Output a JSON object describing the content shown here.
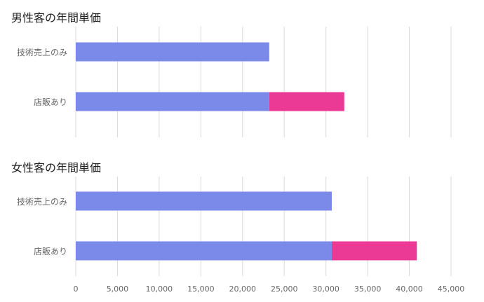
{
  "colors": {
    "base": "#7B8AE8",
    "extra": "#EA3A96",
    "grid": "#DADADA",
    "label": "#666666",
    "title": "#222222"
  },
  "chart_data": [
    {
      "type": "bar",
      "orientation": "horizontal",
      "stacked": true,
      "title": "男性客の年間単価",
      "categories": [
        "技術売上のみ",
        "店販あり"
      ],
      "series": [
        {
          "values": [
            23200,
            23200
          ]
        },
        {
          "values": [
            0,
            9000
          ]
        }
      ],
      "xlim": [
        0,
        45000
      ],
      "grid": true
    },
    {
      "type": "bar",
      "orientation": "horizontal",
      "stacked": true,
      "title": "女性客の年間単価",
      "categories": [
        "技術売上のみ",
        "店販あり"
      ],
      "series": [
        {
          "values": [
            30700,
            30700
          ]
        },
        {
          "values": [
            0,
            10200
          ]
        }
      ],
      "xlim": [
        0,
        45000
      ],
      "grid": true
    }
  ],
  "x_axis": {
    "ticks": [
      "0",
      "5,000",
      "10,000",
      "15,000",
      "20,000",
      "25,000",
      "30,000",
      "35,000",
      "40,000",
      "45,000"
    ]
  }
}
